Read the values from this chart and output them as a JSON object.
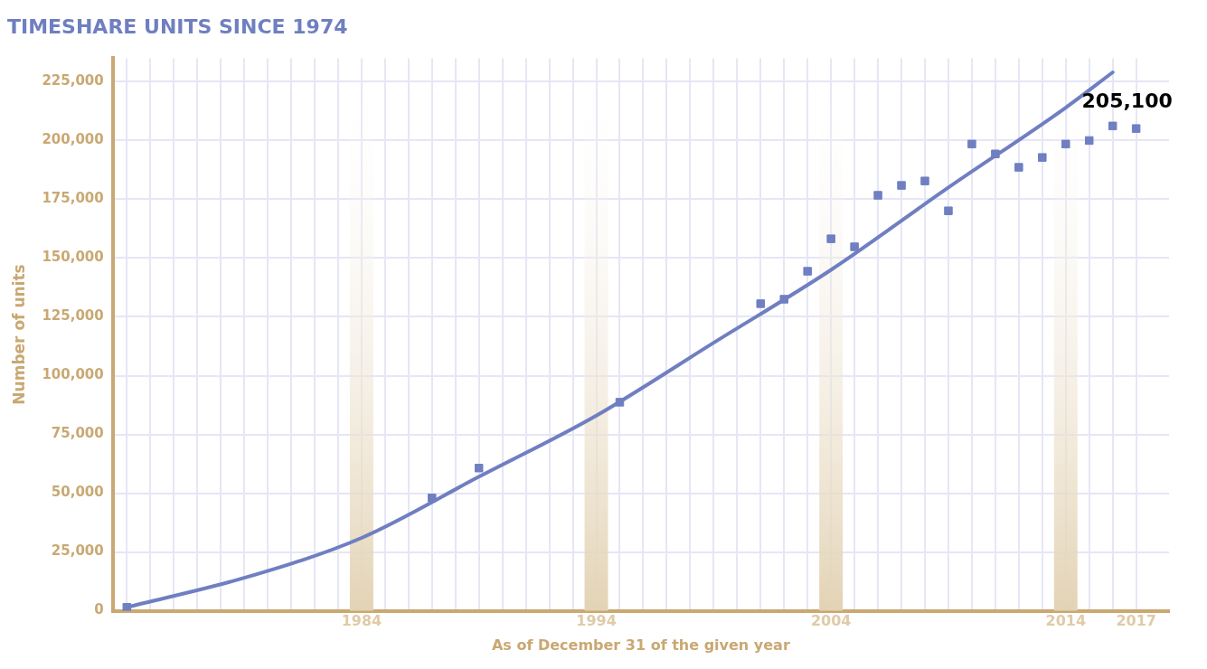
{
  "chart_data": {
    "type": "scatter",
    "title": "TIMESHARE UNITS SINCE 1974",
    "xlabel": "As of December 31 of the given year",
    "ylabel": "Number of units",
    "xlim": [
      1973.4,
      2018.4
    ],
    "ylim": [
      0,
      235000
    ],
    "xticks": [
      {
        "value": 1974,
        "label": null
      },
      {
        "value": 1975,
        "label": null
      },
      {
        "value": 1976,
        "label": null
      },
      {
        "value": 1977,
        "label": null
      },
      {
        "value": 1978,
        "label": null
      },
      {
        "value": 1979,
        "label": null
      },
      {
        "value": 1980,
        "label": null
      },
      {
        "value": 1981,
        "label": null
      },
      {
        "value": 1982,
        "label": null
      },
      {
        "value": 1983,
        "label": null
      },
      1984,
      {
        "value": 1985,
        "label": null
      },
      {
        "value": 1986,
        "label": null
      },
      {
        "value": 1987,
        "label": null
      },
      {
        "value": 1988,
        "label": null
      },
      {
        "value": 1989,
        "label": null
      },
      {
        "value": 1990,
        "label": null
      },
      {
        "value": 1991,
        "label": null
      },
      {
        "value": 1992,
        "label": null
      },
      {
        "value": 1993,
        "label": null
      },
      1994,
      {
        "value": 1995,
        "label": null
      },
      {
        "value": 1996,
        "label": null
      },
      {
        "value": 1997,
        "label": null
      },
      {
        "value": 1998,
        "label": null
      },
      {
        "value": 1999,
        "label": null
      },
      {
        "value": 2000,
        "label": null
      },
      {
        "value": 2001,
        "label": null
      },
      {
        "value": 2002,
        "label": null
      },
      {
        "value": 2003,
        "label": null
      },
      2004,
      {
        "value": 2005,
        "label": null
      },
      {
        "value": 2006,
        "label": null
      },
      {
        "value": 2007,
        "label": null
      },
      {
        "value": 2008,
        "label": null
      },
      {
        "value": 2009,
        "label": null
      },
      {
        "value": 2010,
        "label": null
      },
      {
        "value": 2011,
        "label": null
      },
      {
        "value": 2012,
        "label": null
      },
      {
        "value": 2013,
        "label": null
      },
      2014,
      {
        "value": 2015,
        "label": null
      },
      {
        "value": 2016,
        "label": null
      },
      2017
    ],
    "yticks": [
      {
        "value": 0,
        "label": "0"
      },
      {
        "value": 25000,
        "label": "25,000"
      },
      {
        "value": 50000,
        "label": "50,000"
      },
      {
        "value": 75000,
        "label": "75,000"
      },
      {
        "value": 100000,
        "label": "100,000"
      },
      {
        "value": 125000,
        "label": "125,000"
      },
      {
        "value": 150000,
        "label": "150,000"
      },
      {
        "value": 175000,
        "label": "175,000"
      },
      {
        "value": 200000,
        "label": "200,000"
      },
      {
        "value": 225000,
        "label": "225,000"
      }
    ],
    "grid": true,
    "legend": false,
    "marker": "square",
    "series": [
      {
        "color": "#6f7fc1",
        "x": [
          1974,
          1987,
          1989,
          1995,
          2001,
          2002,
          2003,
          2004,
          2005,
          2006,
          2007,
          2008,
          2009,
          2010,
          2011,
          2012,
          2013,
          2014,
          2015,
          2016,
          2017
        ],
        "values": [
          1500,
          48000,
          60700,
          88700,
          130600,
          132500,
          144400,
          158200,
          154800,
          176700,
          180900,
          182800,
          170100,
          198500,
          194300,
          188600,
          192800,
          198500,
          200000,
          206200,
          205100
        ]
      },
      {
        "type": "line",
        "marker": "none",
        "color": "#6f7fc1",
        "x": [
          1974,
          1979,
          1984,
          1989,
          1994,
          1999,
          2004,
          2009,
          2014,
          2016
        ],
        "values": [
          1500,
          14000,
          31000,
          57000,
          83000,
          114000,
          145000,
          180000,
          214000,
          229000
        ]
      }
    ],
    "bands": [
      {
        "axis": "x",
        "from": 1983.5,
        "to": 1984.5,
        "color": "#e3d3b5"
      },
      {
        "axis": "x",
        "from": 1993.5,
        "to": 1994.5,
        "color": "#e3d3b5"
      },
      {
        "axis": "x",
        "from": 2003.5,
        "to": 2004.5,
        "color": "#e3d3b5"
      },
      {
        "axis": "x",
        "from": 2013.5,
        "to": 2014.5,
        "color": "#e3d3b5"
      }
    ],
    "annotations": [
      {
        "text": "205,100",
        "x": 2017,
        "y": 205100
      }
    ]
  }
}
